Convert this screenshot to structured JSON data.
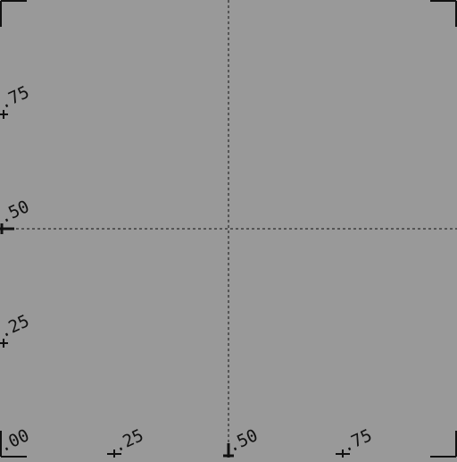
{
  "canvas": {
    "background": "#999999",
    "line_color": "#111111"
  },
  "axes": {
    "x_range": [
      0,
      1
    ],
    "y_range": [
      0,
      1
    ],
    "crosshair_at": [
      0.5,
      0.5
    ]
  },
  "labels": {
    "origin": ".00",
    "x_ticks": [
      {
        "value": 0.25,
        "text": ".25"
      },
      {
        "value": 0.5,
        "text": ".50"
      },
      {
        "value": 0.75,
        "text": ".75"
      }
    ],
    "y_ticks": [
      {
        "value": 0.25,
        "text": ".25"
      },
      {
        "value": 0.5,
        "text": ".50"
      },
      {
        "value": 0.75,
        "text": ".75"
      }
    ]
  }
}
